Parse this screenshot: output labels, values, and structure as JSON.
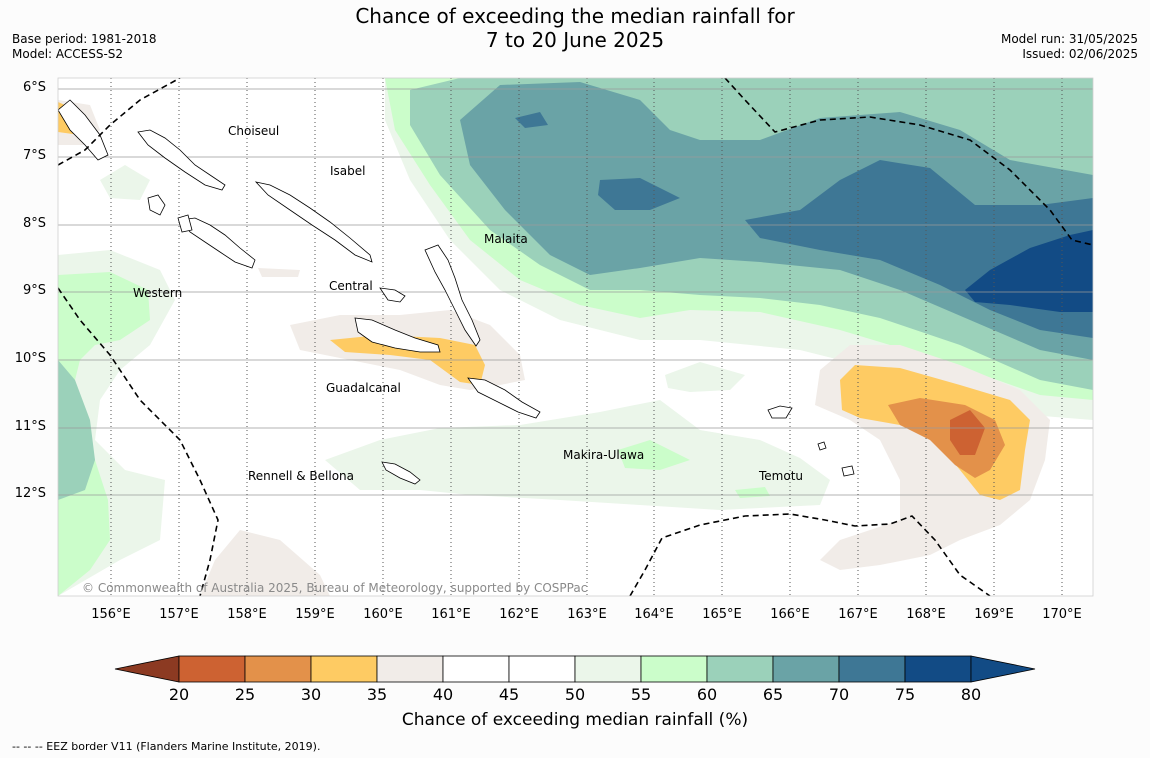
{
  "title": {
    "line1": "Chance of exceeding the median rainfall for",
    "line2": "7 to 20 June 2025"
  },
  "meta": {
    "base_period": "Base period: 1981-2018",
    "model": "Model: ACCESS-S2",
    "model_run": "Model run: 31/05/2025",
    "issued": "Issued: 02/06/2025"
  },
  "map": {
    "lat_labels": [
      "6°S",
      "7°S",
      "8°S",
      "9°S",
      "10°S",
      "11°S",
      "12°S"
    ],
    "lon_labels": [
      "156°E",
      "157°E",
      "158°E",
      "159°E",
      "160°E",
      "161°E",
      "162°E",
      "163°E",
      "164°E",
      "165°E",
      "166°E",
      "167°E",
      "168°E",
      "169°E",
      "170°E"
    ],
    "regions": {
      "choiseul": "Choiseul",
      "isabel": "Isabel",
      "malaita": "Malaita",
      "western": "Western",
      "central": "Central",
      "guadalcanal": "Guadalcanal",
      "makira": "Makira-Ulawa",
      "temotu": "Temotu",
      "rennell": "Rennell & Bellona"
    },
    "copyright": "© Commonwealth of Australia 2025, Bureau of Meteorology, supported by COSPPac"
  },
  "colorbar": {
    "ticks": [
      "20",
      "25",
      "30",
      "35",
      "40",
      "45",
      "50",
      "55",
      "60",
      "65",
      "70",
      "75",
      "80"
    ],
    "colors": [
      "#b24a2a",
      "#cd6232",
      "#e3914a",
      "#fecb63",
      "#f1ece8",
      "#ffffff",
      "#ffffff",
      "#ebf6ea",
      "#cbfdca",
      "#9bd1ba",
      "#6aa3a6",
      "#3e7795",
      "#124b85"
    ],
    "under_color": "#8c3a22",
    "title": "Chance of exceeding median rainfall (%)"
  },
  "footnote": "--  --  -- EEZ border V11 (Flanders Marine Institute, 2019)."
}
